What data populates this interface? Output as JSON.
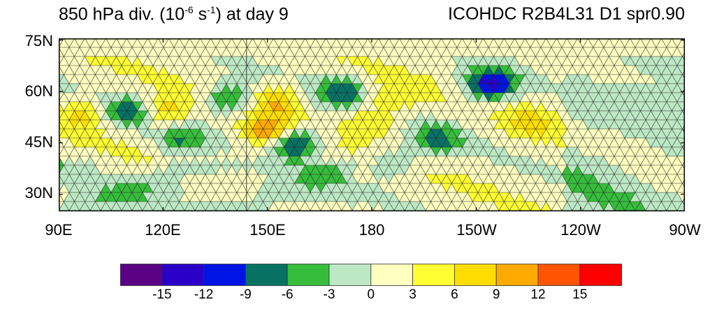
{
  "title": {
    "left_prefix": "850 hPa div. (10",
    "left_exp1": "-6",
    "left_mid": " s",
    "left_exp2": "-1",
    "left_suffix": ") at day 9",
    "right": "ICOHDC R2B4L31 D1 spr0.90"
  },
  "lat_labels": [
    "75N",
    "60N",
    "45N",
    "30N"
  ],
  "lon_labels": [
    "90E",
    "120E",
    "150E",
    "180",
    "150W",
    "120W",
    "90W"
  ],
  "colorbar": {
    "labels": [
      "-15",
      "-12",
      "-9",
      "-6",
      "-3",
      "0",
      "3",
      "6",
      "9",
      "12",
      "15"
    ],
    "colors": [
      "#5a0082",
      "#2a00c8",
      "#0014e6",
      "#077264",
      "#37bd3c",
      "#bde8c4",
      "#ffffc0",
      "#ffff33",
      "#ffdd00",
      "#ffaa00",
      "#ff5500",
      "#ff0000"
    ]
  },
  "map_data": {
    "variable": "850 hPa divergence",
    "lon_range": [
      90,
      270
    ],
    "lat_range": [
      25,
      75
    ],
    "features": [
      {
        "lon": 97,
        "lat": 53,
        "value": 5
      },
      {
        "lon": 121,
        "lat": 54,
        "value": 7
      },
      {
        "lon": 153,
        "lat": 57,
        "value": 7
      },
      {
        "lon": 150,
        "lat": 48,
        "value": 10
      },
      {
        "lon": 180,
        "lat": 51,
        "value": 5
      },
      {
        "lon": 186,
        "lat": 58,
        "value": 4
      },
      {
        "lon": 226,
        "lat": 51,
        "value": 5
      },
      {
        "lon": 110,
        "lat": 54,
        "value": -8
      },
      {
        "lon": 125,
        "lat": 46,
        "value": -7
      },
      {
        "lon": 139,
        "lat": 58,
        "value": -9
      },
      {
        "lon": 158,
        "lat": 45,
        "value": -12
      },
      {
        "lon": 171,
        "lat": 60,
        "value": -9
      },
      {
        "lon": 214,
        "lat": 62,
        "value": -15
      },
      {
        "lon": 199,
        "lat": 46,
        "value": -8
      },
      {
        "lon": 186,
        "lat": 39,
        "value": -5
      }
    ]
  }
}
